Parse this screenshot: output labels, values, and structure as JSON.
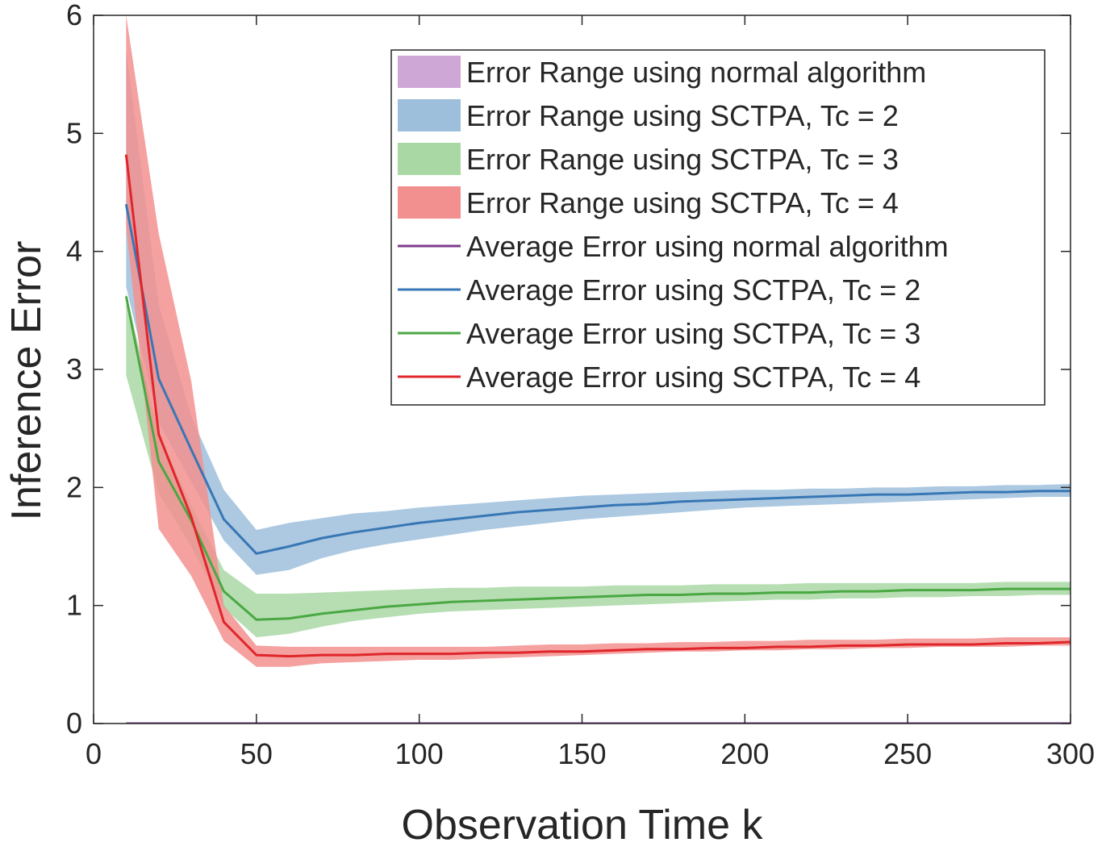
{
  "chart_data": {
    "type": "line",
    "xlabel": "Observation Time k",
    "ylabel": "Inference Error",
    "xlim": [
      0,
      300
    ],
    "ylim": [
      0,
      6
    ],
    "xticks": [
      0,
      50,
      100,
      150,
      200,
      250,
      300
    ],
    "yticks": [
      0,
      1,
      2,
      3,
      4,
      5,
      6
    ],
    "grid": false,
    "legend_position": "top-right",
    "x": [
      10,
      20,
      30,
      40,
      50,
      60,
      70,
      80,
      90,
      100,
      110,
      120,
      130,
      140,
      150,
      160,
      170,
      180,
      190,
      200,
      210,
      220,
      230,
      240,
      250,
      260,
      270,
      280,
      290,
      300
    ],
    "bands": [
      {
        "name": "Error Range using normal algorithm",
        "color": "#cfa7d6",
        "lower": [
          0,
          0,
          0,
          0,
          0,
          0,
          0,
          0,
          0,
          0,
          0,
          0,
          0,
          0,
          0,
          0,
          0,
          0,
          0,
          0,
          0,
          0,
          0,
          0,
          0,
          0,
          0,
          0,
          0,
          0
        ],
        "upper": [
          0.01,
          0.01,
          0.01,
          0.01,
          0.01,
          0.01,
          0.01,
          0.01,
          0.01,
          0.01,
          0.01,
          0.01,
          0.01,
          0.01,
          0.01,
          0.01,
          0.01,
          0.01,
          0.01,
          0.01,
          0.01,
          0.01,
          0.01,
          0.01,
          0.01,
          0.01,
          0.01,
          0.01,
          0.01,
          0.01
        ]
      },
      {
        "name": "Error Range using SCTPA, Tc = 2",
        "color": "#9dbfdc",
        "lower": [
          3.7,
          2.55,
          2.05,
          1.55,
          1.26,
          1.3,
          1.4,
          1.47,
          1.52,
          1.56,
          1.6,
          1.64,
          1.67,
          1.7,
          1.73,
          1.75,
          1.77,
          1.79,
          1.81,
          1.83,
          1.84,
          1.85,
          1.86,
          1.87,
          1.88,
          1.89,
          1.9,
          1.91,
          1.92,
          1.92
        ],
        "upper": [
          5.7,
          3.55,
          2.6,
          1.98,
          1.64,
          1.7,
          1.74,
          1.78,
          1.8,
          1.83,
          1.85,
          1.87,
          1.89,
          1.91,
          1.93,
          1.94,
          1.95,
          1.96,
          1.97,
          1.98,
          1.98,
          1.99,
          1.99,
          2.0,
          2.0,
          2.01,
          2.01,
          2.02,
          2.02,
          2.03
        ]
      },
      {
        "name": "Error Range using SCTPA, Tc = 3",
        "color": "#a9d8a4",
        "lower": [
          2.95,
          1.95,
          1.5,
          0.98,
          0.73,
          0.76,
          0.82,
          0.87,
          0.9,
          0.93,
          0.95,
          0.96,
          0.97,
          0.98,
          0.99,
          1.0,
          1.01,
          1.02,
          1.03,
          1.04,
          1.05,
          1.05,
          1.06,
          1.06,
          1.07,
          1.07,
          1.08,
          1.08,
          1.09,
          1.09
        ],
        "upper": [
          3.65,
          2.45,
          1.85,
          1.3,
          1.1,
          1.1,
          1.11,
          1.12,
          1.13,
          1.14,
          1.15,
          1.15,
          1.16,
          1.16,
          1.16,
          1.17,
          1.17,
          1.17,
          1.18,
          1.18,
          1.18,
          1.19,
          1.19,
          1.19,
          1.19,
          1.19,
          1.19,
          1.2,
          1.2,
          1.2
        ]
      },
      {
        "name": "Error Range using SCTPA, Tc = 4",
        "color": "#f2908f",
        "lower": [
          4.2,
          1.65,
          1.25,
          0.7,
          0.48,
          0.48,
          0.51,
          0.52,
          0.53,
          0.54,
          0.54,
          0.55,
          0.56,
          0.57,
          0.58,
          0.59,
          0.6,
          0.61,
          0.61,
          0.62,
          0.62,
          0.63,
          0.63,
          0.64,
          0.64,
          0.65,
          0.65,
          0.65,
          0.66,
          0.66
        ],
        "upper": [
          6.0,
          4.15,
          2.9,
          1.0,
          0.66,
          0.65,
          0.65,
          0.65,
          0.65,
          0.65,
          0.65,
          0.65,
          0.66,
          0.67,
          0.67,
          0.68,
          0.68,
          0.69,
          0.69,
          0.7,
          0.7,
          0.71,
          0.71,
          0.71,
          0.72,
          0.72,
          0.72,
          0.73,
          0.73,
          0.73
        ]
      }
    ],
    "series": [
      {
        "name": "Average Error using normal algorithm",
        "color": "#7e3b8f",
        "values": [
          0,
          0,
          0,
          0,
          0,
          0,
          0,
          0,
          0,
          0,
          0,
          0,
          0,
          0,
          0,
          0,
          0,
          0,
          0,
          0,
          0,
          0,
          0,
          0,
          0,
          0,
          0,
          0,
          0,
          0
        ]
      },
      {
        "name": "Average Error using SCTPA, Tc = 2",
        "color": "#3877b5",
        "values": [
          4.4,
          2.92,
          2.32,
          1.73,
          1.44,
          1.5,
          1.57,
          1.62,
          1.66,
          1.7,
          1.73,
          1.76,
          1.79,
          1.81,
          1.83,
          1.85,
          1.86,
          1.88,
          1.89,
          1.9,
          1.91,
          1.92,
          1.93,
          1.94,
          1.94,
          1.95,
          1.96,
          1.96,
          1.97,
          1.97
        ]
      },
      {
        "name": "Average Error using SCTPA, Tc = 3",
        "color": "#4aa843",
        "values": [
          3.62,
          2.22,
          1.72,
          1.12,
          0.88,
          0.89,
          0.93,
          0.96,
          0.99,
          1.01,
          1.03,
          1.04,
          1.05,
          1.06,
          1.07,
          1.08,
          1.09,
          1.09,
          1.1,
          1.1,
          1.11,
          1.11,
          1.12,
          1.12,
          1.13,
          1.13,
          1.13,
          1.14,
          1.14,
          1.14
        ]
      },
      {
        "name": "Average Error using SCTPA, Tc = 4",
        "color": "#e0262a",
        "values": [
          4.82,
          2.45,
          1.75,
          0.86,
          0.58,
          0.57,
          0.58,
          0.58,
          0.59,
          0.59,
          0.59,
          0.6,
          0.6,
          0.61,
          0.61,
          0.62,
          0.63,
          0.63,
          0.64,
          0.64,
          0.65,
          0.65,
          0.66,
          0.66,
          0.67,
          0.67,
          0.67,
          0.68,
          0.68,
          0.69
        ]
      }
    ]
  }
}
